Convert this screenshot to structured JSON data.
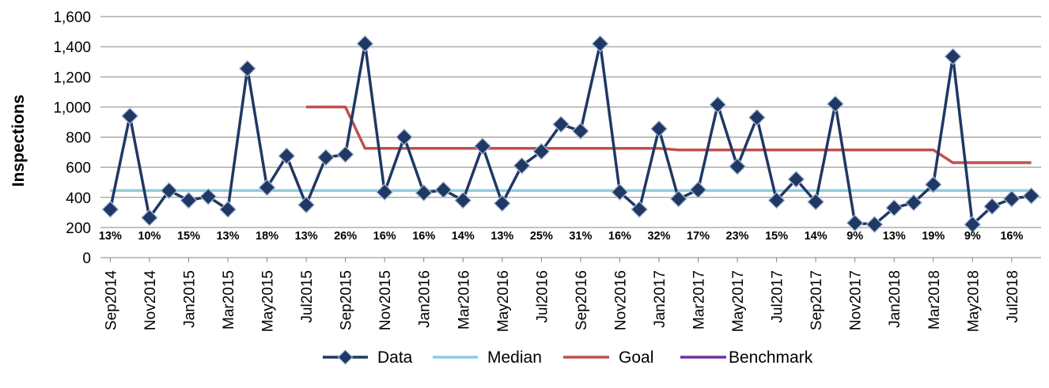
{
  "chart_data": {
    "type": "line",
    "ylabel": "Inspections",
    "ylim": [
      0,
      1600
    ],
    "yticks": [
      0,
      200,
      400,
      600,
      800,
      1000,
      1200,
      1400,
      1600
    ],
    "ytick_labels": [
      "0",
      "200",
      "400",
      "600",
      "800",
      "1,000",
      "1,200",
      "1,400",
      "1,600"
    ],
    "grid": true,
    "legend_position": "bottom",
    "months": [
      "Sep2014",
      "Oct2014",
      "Nov2014",
      "Dec2014",
      "Jan2015",
      "Feb2015",
      "Mar2015",
      "Apr2015",
      "May2015",
      "Jun2015",
      "Jul2015",
      "Aug2015",
      "Sep2015",
      "Oct2015",
      "Nov2015",
      "Dec2015",
      "Jan2016",
      "Feb2016",
      "Mar2016",
      "Apr2016",
      "May2016",
      "Jun2016",
      "Jul2016",
      "Aug2016",
      "Sep2016",
      "Oct2016",
      "Nov2016",
      "Dec2016",
      "Jan2017",
      "Feb2017",
      "Mar2017",
      "Apr2017",
      "May2017",
      "Jun2017",
      "Jul2017",
      "Aug2017",
      "Sep2017",
      "Oct2017",
      "Nov2017",
      "Dec2017",
      "Jan2018",
      "Feb2018",
      "Mar2018",
      "Apr2018",
      "May2018",
      "Jun2018",
      "Jul2018",
      "Aug2018"
    ],
    "xtick_labels": [
      "Sep2014",
      "Nov2014",
      "Jan2015",
      "Mar2015",
      "May2015",
      "Jul2015",
      "Sep2015",
      "Nov2015",
      "Jan2016",
      "Mar2016",
      "May2016",
      "Jul2016",
      "Sep2016",
      "Nov2016",
      "Jan2017",
      "Mar2017",
      "May2017",
      "Jul2017",
      "Sep2017",
      "Nov2017",
      "Jan2018",
      "Mar2018",
      "May2018",
      "Jul2018"
    ],
    "series": [
      {
        "name": "Data",
        "color": "#1f3864",
        "marker": "diamond",
        "values": [
          320,
          940,
          265,
          445,
          380,
          405,
          320,
          1255,
          465,
          675,
          350,
          665,
          685,
          1420,
          435,
          800,
          430,
          450,
          380,
          740,
          360,
          610,
          705,
          885,
          840,
          1420,
          435,
          320,
          855,
          390,
          450,
          1015,
          605,
          930,
          380,
          520,
          370,
          1020,
          230,
          220,
          330,
          365,
          485,
          1335,
          220,
          340,
          390,
          410
        ]
      },
      {
        "name": "Median",
        "color": "#8fcce0",
        "values": [
          445,
          445,
          445,
          445,
          445,
          445,
          445,
          445,
          445,
          445,
          445,
          445,
          445,
          445,
          445,
          445,
          445,
          445,
          445,
          445,
          445,
          445,
          445,
          445,
          445,
          445,
          445,
          445,
          445,
          445,
          445,
          445,
          445,
          445,
          445,
          445,
          445,
          445,
          445,
          445,
          445,
          445,
          445,
          445,
          445,
          445,
          445,
          445
        ]
      },
      {
        "name": "Goal",
        "color": "#c0504d",
        "values": [
          null,
          null,
          null,
          null,
          null,
          null,
          null,
          null,
          null,
          null,
          1000,
          1000,
          1000,
          725,
          725,
          725,
          725,
          725,
          725,
          725,
          725,
          725,
          725,
          725,
          725,
          725,
          725,
          725,
          725,
          715,
          715,
          715,
          715,
          715,
          715,
          715,
          715,
          715,
          715,
          715,
          715,
          715,
          715,
          630,
          630,
          630,
          630,
          630
        ]
      },
      {
        "name": "Benchmark",
        "color": "#7030a0",
        "values": []
      }
    ],
    "annotations": [
      {
        "month": "Sep2014",
        "label": "13%"
      },
      {
        "month": "Nov2014",
        "label": "10%"
      },
      {
        "month": "Jan2015",
        "label": "15%"
      },
      {
        "month": "Mar2015",
        "label": "13%"
      },
      {
        "month": "May2015",
        "label": "18%"
      },
      {
        "month": "Jul2015",
        "label": "13%"
      },
      {
        "month": "Sep2015",
        "label": "26%"
      },
      {
        "month": "Nov2015",
        "label": "16%"
      },
      {
        "month": "Jan2016",
        "label": "16%"
      },
      {
        "month": "Mar2016",
        "label": "14%"
      },
      {
        "month": "May2016",
        "label": "13%"
      },
      {
        "month": "Jul2016",
        "label": "25%"
      },
      {
        "month": "Sep2016",
        "label": "31%"
      },
      {
        "month": "Nov2016",
        "label": "16%"
      },
      {
        "month": "Jan2017",
        "label": "32%"
      },
      {
        "month": "Mar2017",
        "label": "17%"
      },
      {
        "month": "May2017",
        "label": "23%"
      },
      {
        "month": "Jul2017",
        "label": "15%"
      },
      {
        "month": "Sep2017",
        "label": "14%"
      },
      {
        "month": "Nov2017",
        "label": "9%"
      },
      {
        "month": "Jan2018",
        "label": "13%"
      },
      {
        "month": "Mar2018",
        "label": "19%"
      },
      {
        "month": "May2018",
        "label": "9%"
      },
      {
        "month": "Jul2018",
        "label": "16%"
      }
    ]
  }
}
